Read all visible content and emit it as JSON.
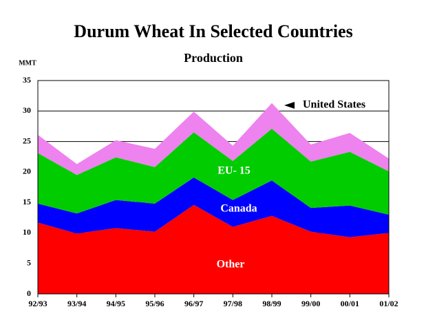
{
  "chart_data": {
    "type": "stacked_area",
    "title": "Durum Wheat In Selected Countries",
    "subtitle": "Production",
    "y_label": "MMT",
    "categories": [
      "92/93",
      "93/94",
      "94/95",
      "95/96",
      "96/97",
      "97/98",
      "98/99",
      "99/00",
      "00/01",
      "01/02"
    ],
    "series": [
      {
        "name": "Other",
        "color": "#ff0000",
        "values": [
          11.7,
          9.9,
          10.8,
          10.2,
          14.6,
          11.0,
          12.8,
          10.2,
          9.3,
          10.0
        ]
      },
      {
        "name": "Canada",
        "color": "#0000ff",
        "values": [
          3.1,
          3.3,
          4.6,
          4.6,
          4.5,
          4.4,
          5.8,
          3.9,
          5.2,
          3.0
        ]
      },
      {
        "name": "EU- 15",
        "color": "#00cc00",
        "values": [
          8.3,
          6.3,
          7.0,
          6.0,
          7.4,
          6.4,
          8.5,
          7.6,
          8.8,
          7.1
        ]
      },
      {
        "name": "United States",
        "color": "#ee82ee",
        "values": [
          3.0,
          1.8,
          2.8,
          3.0,
          3.4,
          2.5,
          4.2,
          2.8,
          3.1,
          2.1
        ]
      }
    ],
    "ylim": [
      0,
      35
    ],
    "yticks": [
      0,
      5,
      10,
      15,
      20,
      25,
      30,
      35
    ],
    "grid": true
  }
}
